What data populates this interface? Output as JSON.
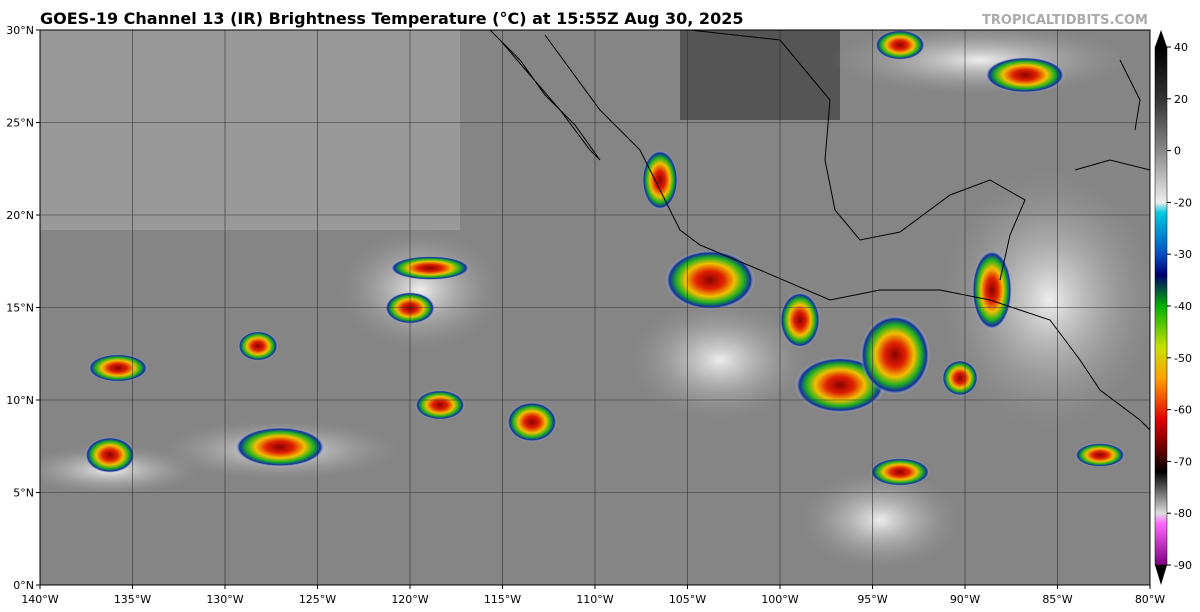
{
  "header": {
    "title": "GOES-19 Channel 13 (IR) Brightness Temperature (°C) at 15:55Z Aug 30, 2025",
    "credit": "TROPICALTIDBITS.COM"
  },
  "map": {
    "xlim": [
      -140,
      -80
    ],
    "ylim": [
      0,
      30
    ],
    "xticks": [
      {
        "value": -140,
        "label": "140°W"
      },
      {
        "value": -135,
        "label": "135°W"
      },
      {
        "value": -130,
        "label": "130°W"
      },
      {
        "value": -125,
        "label": "125°W"
      },
      {
        "value": -120,
        "label": "120°W"
      },
      {
        "value": -115,
        "label": "115°W"
      },
      {
        "value": -110,
        "label": "110°W"
      },
      {
        "value": -105,
        "label": "105°W"
      },
      {
        "value": -100,
        "label": "100°W"
      },
      {
        "value": -95,
        "label": "95°W"
      },
      {
        "value": -90,
        "label": "90°W"
      },
      {
        "value": -85,
        "label": "85°W"
      },
      {
        "value": -80,
        "label": "80°W"
      }
    ],
    "yticks": [
      {
        "value": 0,
        "label": "0°N"
      },
      {
        "value": 5,
        "label": "5°N"
      },
      {
        "value": 10,
        "label": "10°N"
      },
      {
        "value": 15,
        "label": "15°N"
      },
      {
        "value": 20,
        "label": "20°N"
      },
      {
        "value": 25,
        "label": "25°N"
      },
      {
        "value": 30,
        "label": "30°N"
      }
    ],
    "grid": true
  },
  "colorbar": {
    "ticks": [
      40,
      20,
      0,
      -20,
      -30,
      -40,
      -50,
      -60,
      -70,
      -80,
      -90
    ]
  }
}
